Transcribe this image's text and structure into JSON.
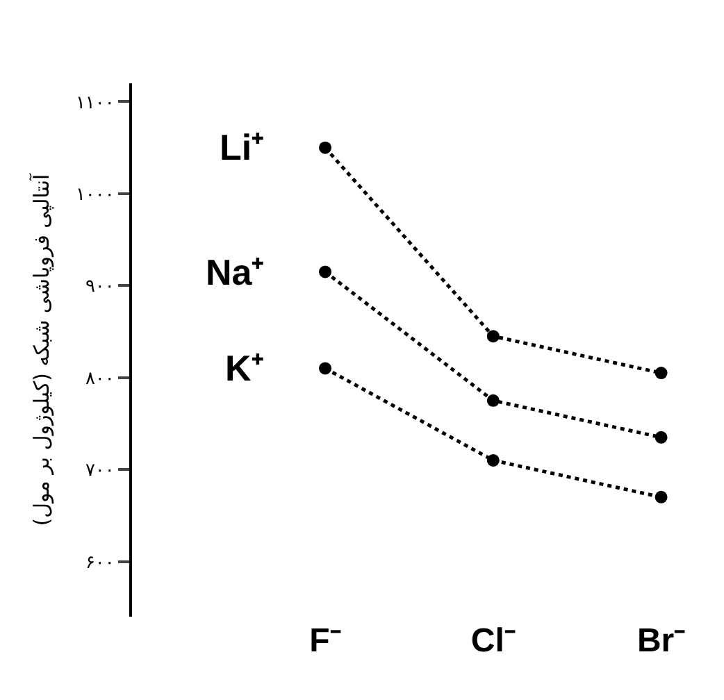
{
  "chart_data": {
    "type": "line",
    "ylabel": "آنتالپی فروپاشی شبکه (کیلوژول بر مول)",
    "categories": [
      "F⁻",
      "Cl⁻",
      "Br⁻"
    ],
    "series": [
      {
        "name": "Li⁺",
        "color": "#000000",
        "values": [
          1050,
          845,
          805
        ]
      },
      {
        "name": "Na⁺",
        "color": "#000000",
        "values": [
          915,
          775,
          735
        ]
      },
      {
        "name": "K⁺",
        "color": "#000000",
        "values": [
          810,
          710,
          670
        ]
      }
    ],
    "ylim": [
      540,
      1120
    ],
    "yticks": [
      {
        "value": 600,
        "label": "۶۰۰"
      },
      {
        "value": 700,
        "label": "۷۰۰"
      },
      {
        "value": 800,
        "label": "۸۰۰"
      },
      {
        "value": 900,
        "label": "۹۰۰"
      },
      {
        "value": 1000,
        "label": "۱۰۰۰"
      },
      {
        "value": 1100,
        "label": "۱۱۰۰"
      }
    ],
    "legend": false,
    "marker": "circle",
    "line_style": "dotted"
  }
}
